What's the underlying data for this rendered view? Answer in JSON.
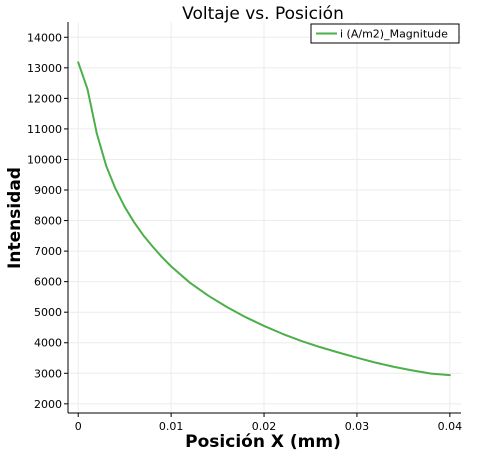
{
  "chart_data": {
    "type": "line",
    "title": "Voltaje vs. Posición",
    "xlabel": "Posición X (mm)",
    "ylabel": "Intensidad",
    "xlim": [
      -0.0011,
      0.0412
    ],
    "ylim": [
      1700,
      14500
    ],
    "x_ticks": [
      0,
      0.01,
      0.02,
      0.03,
      0.04
    ],
    "x_tick_labels": [
      "0",
      "0.01",
      "0.02",
      "0.03",
      "0.04"
    ],
    "y_ticks": [
      2000,
      3000,
      4000,
      5000,
      6000,
      7000,
      8000,
      9000,
      10000,
      11000,
      12000,
      13000,
      14000
    ],
    "y_tick_labels": [
      "2000",
      "3000",
      "4000",
      "5000",
      "6000",
      "7000",
      "8000",
      "9000",
      "10000",
      "11000",
      "12000",
      "13000",
      "14000"
    ],
    "grid": true,
    "legend_position": "top-right",
    "series": [
      {
        "name": "i (A/m2)_Magnitude",
        "color": "#4daf4a",
        "x": [
          0,
          0.001,
          0.002,
          0.003,
          0.004,
          0.005,
          0.006,
          0.007,
          0.008,
          0.009,
          0.01,
          0.012,
          0.014,
          0.016,
          0.018,
          0.02,
          0.022,
          0.024,
          0.026,
          0.028,
          0.03,
          0.032,
          0.034,
          0.036,
          0.038,
          0.04
        ],
        "y": [
          13180,
          12300,
          10850,
          9800,
          9050,
          8450,
          7950,
          7520,
          7150,
          6810,
          6500,
          5970,
          5540,
          5170,
          4840,
          4550,
          4290,
          4060,
          3860,
          3680,
          3510,
          3350,
          3210,
          3090,
          2990,
          2940
        ]
      }
    ]
  }
}
